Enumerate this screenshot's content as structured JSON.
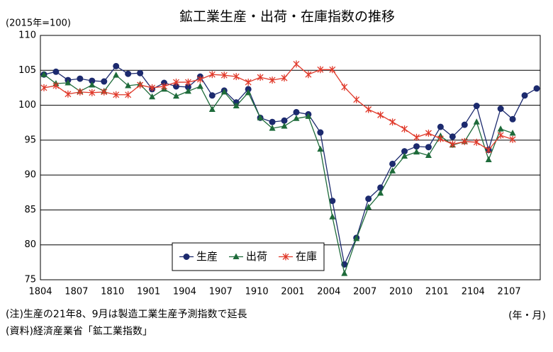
{
  "chart_data": {
    "type": "line",
    "title": "鉱工業生産・出荷・在庫指数の推移",
    "y_unit": "(2015年=100)",
    "x_unit": "(年・月)",
    "notes": [
      "(注)生産の21年8、9月は製造工業生産予測指数で延長",
      "(資料)経済産業省「鉱工業指数」"
    ],
    "categories": [
      "1804",
      null,
      null,
      "1807",
      null,
      null,
      "1810",
      null,
      null,
      "1901",
      null,
      null,
      "1904",
      null,
      null,
      "1907",
      null,
      null,
      "1910",
      null,
      null,
      "2001",
      null,
      null,
      "2004",
      null,
      null,
      "2007",
      null,
      null,
      "2010",
      null,
      null,
      "2101",
      null,
      null,
      "2104",
      null,
      null,
      "2107",
      null,
      null
    ],
    "ylim": [
      75,
      110
    ],
    "yticks": [
      75,
      80,
      85,
      90,
      95,
      100,
      105,
      110
    ],
    "grid": true,
    "legend": "bottom",
    "series": [
      {
        "name": "生産",
        "color": "#1c2a6e",
        "marker": "circle",
        "hollow_from": "2108",
        "values": [
          104.4,
          104.8,
          103.6,
          103.8,
          103.5,
          103.4,
          105.6,
          104.5,
          104.6,
          102.3,
          103.2,
          102.7,
          102.6,
          104.1,
          101.4,
          102.1,
          100.4,
          102.3,
          98.2,
          97.6,
          97.8,
          99.0,
          98.7,
          96.1,
          86.3,
          77.2,
          81.0,
          86.6,
          88.2,
          91.6,
          93.4,
          94.1,
          94.0,
          96.9,
          95.5,
          97.2,
          99.9,
          93.6,
          99.5,
          98.0,
          101.4,
          102.4
        ]
      },
      {
        "name": "出荷",
        "color": "#1e6b3a",
        "marker": "triangle",
        "values": [
          104.4,
          103.1,
          103.2,
          102.0,
          102.9,
          102.0,
          104.3,
          102.8,
          103.0,
          101.2,
          102.3,
          101.3,
          102.0,
          102.7,
          99.4,
          101.9,
          99.9,
          101.8,
          98.2,
          96.7,
          97.0,
          98.1,
          98.4,
          93.7,
          84.0,
          75.9,
          80.9,
          85.4,
          87.4,
          90.6,
          92.7,
          93.3,
          92.8,
          95.6,
          94.3,
          94.8,
          97.6,
          92.2,
          96.6,
          96.0,
          null,
          null
        ]
      },
      {
        "name": "在庫",
        "color": "#e0392a",
        "marker": "star",
        "values": [
          102.5,
          102.8,
          101.6,
          101.9,
          101.8,
          101.9,
          101.5,
          101.5,
          102.9,
          102.5,
          102.7,
          103.3,
          103.3,
          103.7,
          104.4,
          104.3,
          104.1,
          103.3,
          104.0,
          103.6,
          103.9,
          105.9,
          104.4,
          105.1,
          105.1,
          102.6,
          100.8,
          99.4,
          98.6,
          97.6,
          96.6,
          95.4,
          96.0,
          95.2,
          94.4,
          94.8,
          94.7,
          93.6,
          95.7,
          95.1,
          null,
          null
        ]
      }
    ]
  }
}
